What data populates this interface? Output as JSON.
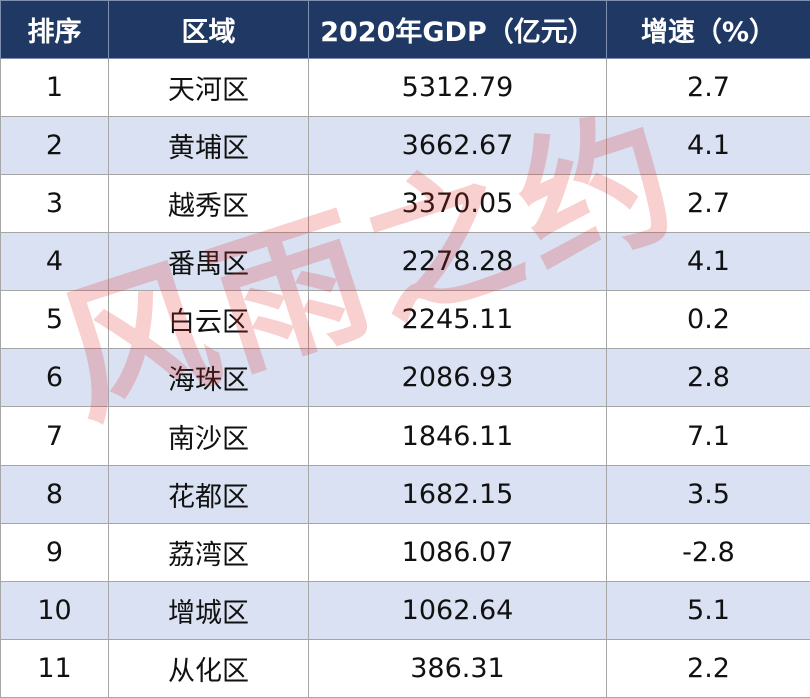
{
  "table": {
    "header": [
      "排序",
      "区域",
      "2020年GDP（亿元）",
      "增速（%）"
    ],
    "rows": [
      [
        "1",
        "天河区",
        "5312.79",
        "2.7"
      ],
      [
        "2",
        "黄埔区",
        "3662.67",
        "4.1"
      ],
      [
        "3",
        "越秀区",
        "3370.05",
        "2.7"
      ],
      [
        "4",
        "番禺区",
        "2278.28",
        "4.1"
      ],
      [
        "5",
        "白云区",
        "2245.11",
        "0.2"
      ],
      [
        "6",
        "海珠区",
        "2086.93",
        "2.8"
      ],
      [
        "7",
        "南沙区",
        "1846.11",
        "7.1"
      ],
      [
        "8",
        "花都区",
        "1682.15",
        "3.5"
      ],
      [
        "9",
        "荔湾区",
        "1086.07",
        "-2.8"
      ],
      [
        "10",
        "增城区",
        "1062.64",
        "5.1"
      ],
      [
        "11",
        "从化区",
        "386.31",
        "2.2"
      ]
    ]
  },
  "watermark": "风雨之约"
}
